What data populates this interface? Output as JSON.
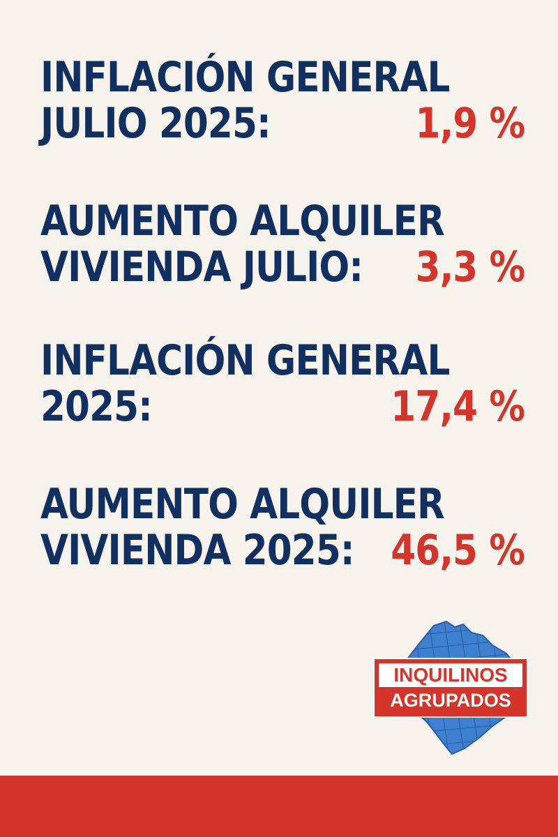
{
  "colors": {
    "background": "#f6f2ec",
    "label_text": "#12305f",
    "value_text": "#d4342a",
    "footer_bar": "#d4342a",
    "logo_map": "#3f7fd0",
    "logo_box": "#d4342a"
  },
  "stats": [
    {
      "line1": "INFLACIÓN GENERAL",
      "line2": "JULIO 2025:",
      "value": "1,9 %"
    },
    {
      "line1": "AUMENTO ALQUILER",
      "line2": "VIVIENDA JULIO:",
      "value": "3,3 %"
    },
    {
      "line1": "INFLACIÓN GENERAL",
      "line2": "2025:",
      "value": "17,4 %"
    },
    {
      "line1": "AUMENTO ALQUILER",
      "line2": "VIVIENDA 2025:",
      "value": "46,5 %"
    }
  ],
  "logo": {
    "line1": "INQUILINOS",
    "line2": "AGRUPADOS",
    "map_icon": "city-map-icon"
  }
}
